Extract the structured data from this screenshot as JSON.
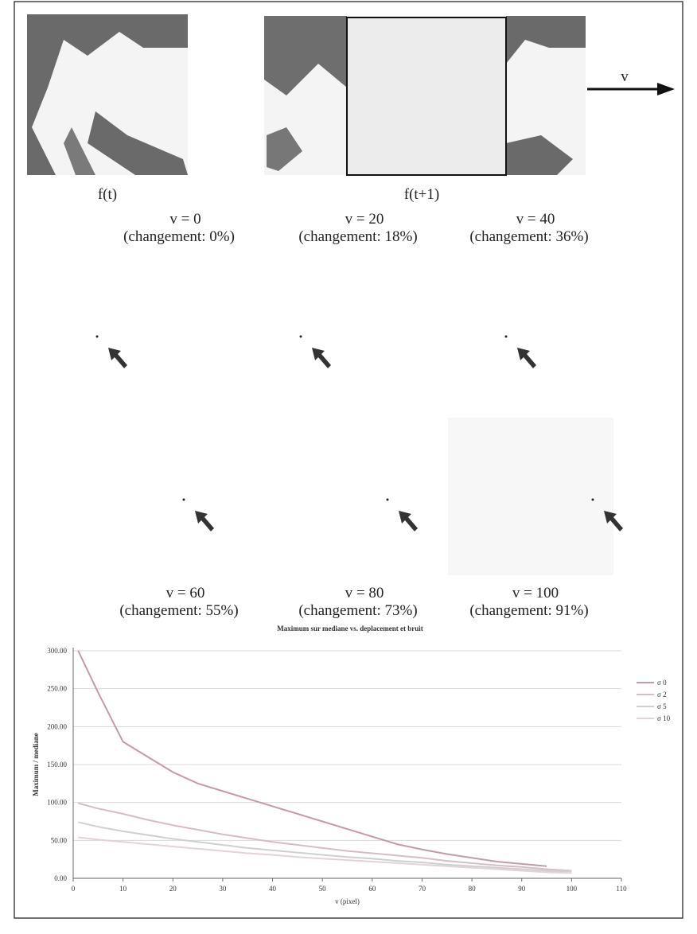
{
  "top": {
    "left_caption": "f(t)",
    "right_caption": "f(t+1)",
    "arrow_label": "v"
  },
  "panels": [
    {
      "v": "v = 0",
      "change": "(changement: 0%)"
    },
    {
      "v": "v = 20",
      "change": "(changement: 18%)"
    },
    {
      "v": "v = 40",
      "change": "(changement: 36%)"
    },
    {
      "v": "v = 60",
      "change": "(changement: 55%)"
    },
    {
      "v": "v = 80",
      "change": "(changement: 73%)"
    },
    {
      "v": "v = 100",
      "change": "(changement: 91%)"
    }
  ],
  "chart_data": {
    "type": "line",
    "title": "Maximum sur mediane vs. deplacement et bruit",
    "x_label": "v (pixel)",
    "y_label": "Maximum / mediane",
    "x": [
      1,
      5,
      10,
      15,
      20,
      25,
      30,
      35,
      40,
      45,
      50,
      55,
      60,
      65,
      70,
      75,
      80,
      85,
      90,
      95,
      100
    ],
    "series": [
      {
        "name": "σ 0",
        "color": "#c49aa4",
        "values": [
          300,
          245,
          180,
          160,
          140,
          125,
          115,
          105,
          95,
          85,
          75,
          65,
          55,
          45,
          38,
          32,
          27,
          22,
          19,
          16,
          null
        ]
      },
      {
        "name": "σ 2",
        "color": "#d6bcc6",
        "values": [
          99,
          92,
          85,
          77,
          70,
          64,
          58,
          53,
          48,
          44,
          40,
          36,
          33,
          30,
          27,
          23,
          20,
          17,
          15,
          12,
          10
        ]
      },
      {
        "name": "σ 5",
        "color": "#cfcfcf",
        "values": [
          74,
          68,
          62,
          57,
          52,
          48,
          44,
          40,
          37,
          34,
          31,
          28,
          26,
          23,
          21,
          18,
          16,
          14,
          12,
          10,
          9
        ]
      },
      {
        "name": "σ 10",
        "color": "#e2d2da",
        "values": [
          54,
          51,
          48,
          45,
          42,
          39,
          36,
          33,
          31,
          28,
          26,
          24,
          22,
          20,
          18,
          16,
          14,
          12,
          10,
          8,
          7
        ]
      }
    ],
    "xlim": [
      0,
      110
    ],
    "xticks": [
      0,
      10,
      20,
      30,
      40,
      50,
      60,
      70,
      80,
      90,
      100,
      110
    ],
    "ylim": [
      0,
      300
    ],
    "yticks": [
      {
        "value": 0,
        "label": "0.00"
      },
      {
        "value": 50,
        "label": "50.00"
      },
      {
        "value": 100,
        "label": "100.00"
      },
      {
        "value": 150,
        "label": "150.00"
      },
      {
        "value": 200,
        "label": "200.00"
      },
      {
        "value": 250,
        "label": "250.00"
      },
      {
        "value": 300,
        "label": "300.00"
      }
    ],
    "grid": true,
    "legend": "right"
  }
}
